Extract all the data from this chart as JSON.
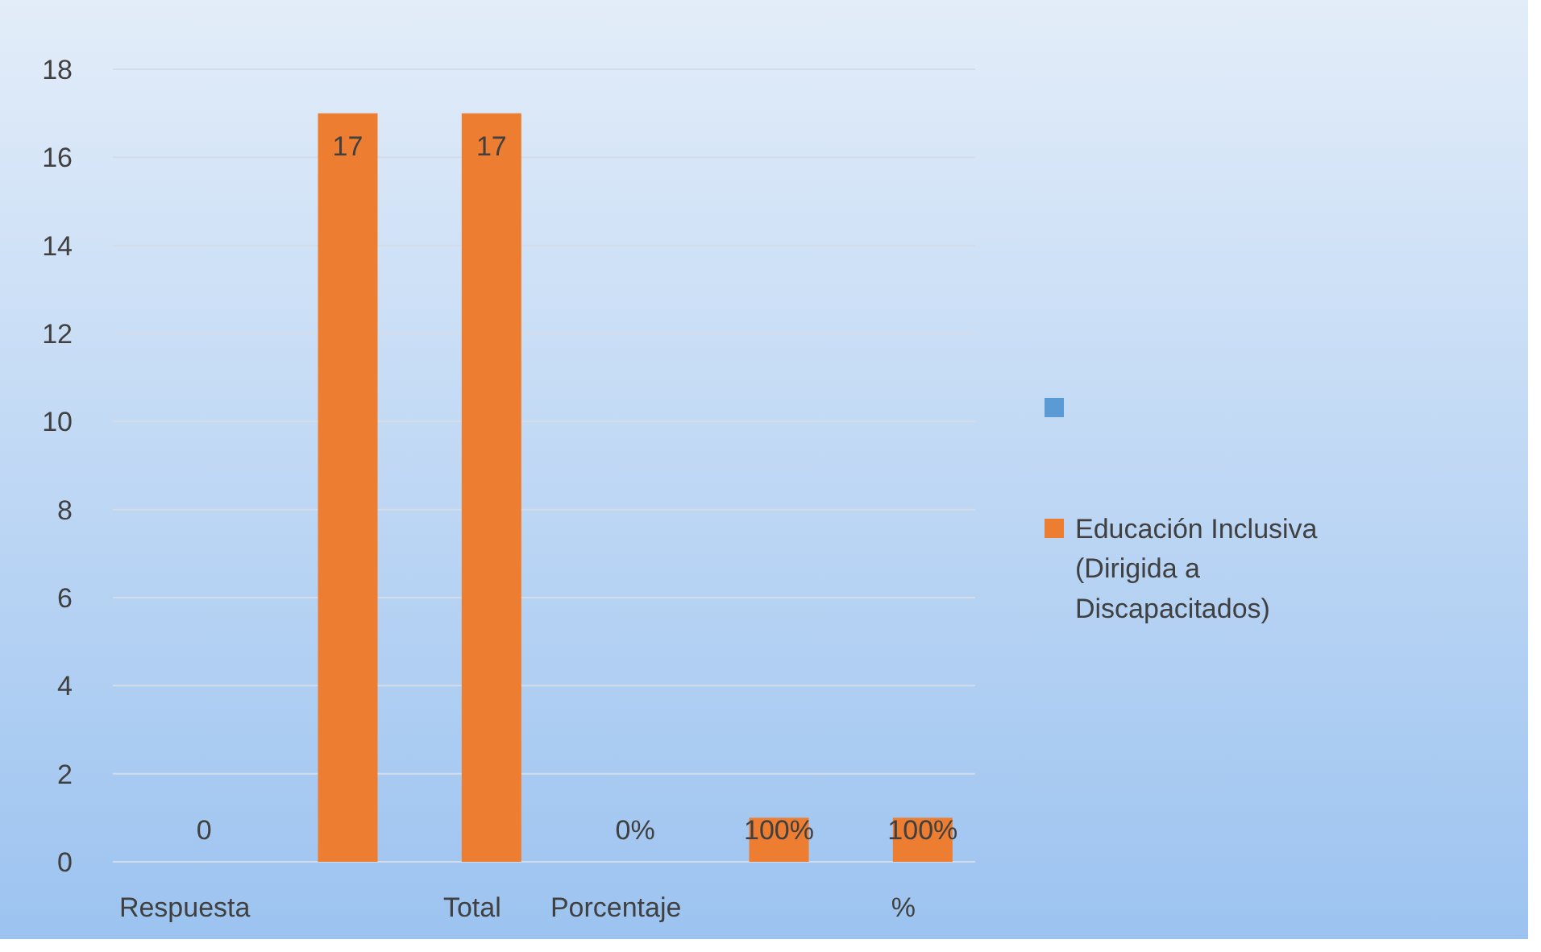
{
  "chart_data": {
    "type": "bar",
    "categories": [
      "Respuesta",
      null,
      "Total",
      "Porcentaje",
      null,
      "%"
    ],
    "series": [
      {
        "color": "#5b9bd5",
        "values": [
          null,
          null,
          null,
          null,
          null,
          null
        ]
      },
      {
        "name": "Educación Inclusiva (Dirigida a Discapacitados)",
        "color": "#ed7d31",
        "values": [
          0,
          17,
          17,
          0,
          1,
          1
        ],
        "value_labels": [
          "0",
          "17",
          "17",
          "0%",
          "100%",
          "100%"
        ]
      }
    ],
    "ylim": [
      0,
      18
    ],
    "yticks": [
      0,
      2,
      4,
      6,
      8,
      10,
      12,
      14,
      16,
      18
    ],
    "grid": "y",
    "legend": "right"
  }
}
